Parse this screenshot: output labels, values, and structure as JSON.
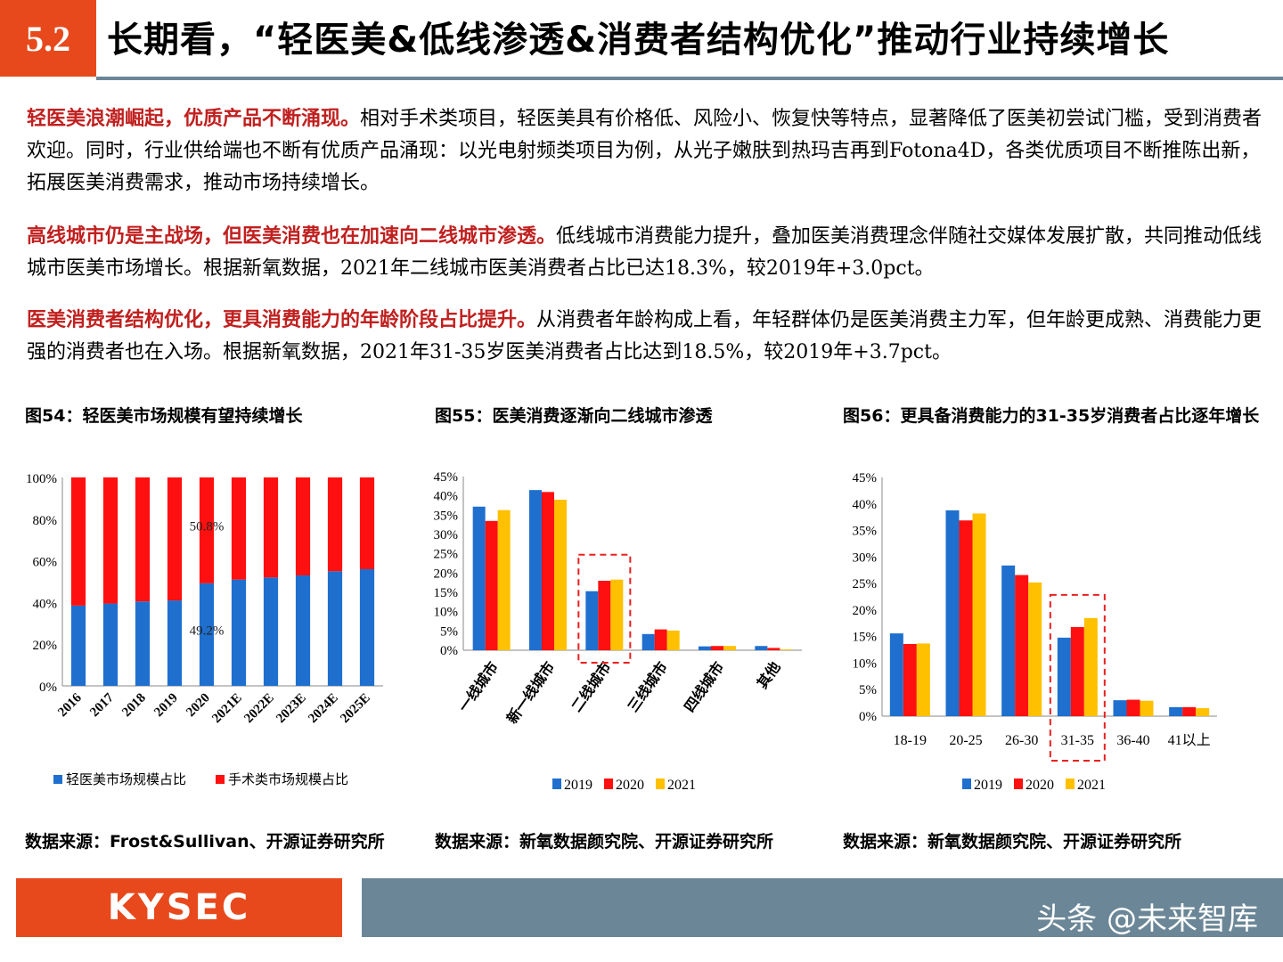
{
  "header": {
    "section_number": "5.2",
    "title": "长期看，“轻医美&低线渗透&消费者结构优化”推动行业持续增长"
  },
  "colors": {
    "accent": "#e8491c",
    "bar_slate": "#6b8797",
    "blue": "#1f6fce",
    "red": "#ff1010",
    "yellow": "#ffc000"
  },
  "paragraphs": [
    {
      "highlight": "轻医美浪潮崛起，优质产品不断涌现。",
      "text": "相对手术类项目，轻医美具有价格低、风险小、恢复快等特点，显著降低了医美初尝试门槛，受到消费者欢迎。同时，行业供给端也不断有优质产品涌现：以光电射频类项目为例，从光子嫩肤到热玛吉再到Fotona4D，各类优质项目不断推陈出新，拓展医美消费需求，推动市场持续增长。"
    },
    {
      "highlight": "高线城市仍是主战场，但医美消费也在加速向二线城市渗透。",
      "text": "低线城市消费能力提升，叠加医美消费理念伴随社交媒体发展扩散，共同推动低线城市医美市场增长。根据新氧数据，2021年二线城市医美消费者占比已达18.3%，较2019年+3.0pct。"
    },
    {
      "highlight": "医美消费者结构优化，更具消费能力的年龄阶段占比提升。",
      "text": "从消费者年龄构成上看，年轻群体仍是医美消费主力军，但年龄更成熟、消费能力更强的消费者也在入场。根据新氧数据，2021年31-35岁医美消费者占比达到18.5%，较2019年+3.7pct。"
    }
  ],
  "charts": [
    {
      "title": "图54：轻医美市场规模有望持续增长",
      "source": "数据来源：Frost&Sullivan、开源证券研究所"
    },
    {
      "title": "图55：医美消费逐渐向二线城市渗透",
      "source": "数据来源：新氧数据颜究院、开源证券研究所"
    },
    {
      "title": "图56：更具备消费能力的31-35岁消费者占比逐年增长",
      "source": "数据来源：新氧数据颜究院、开源证券研究所"
    }
  ],
  "chart_data": [
    {
      "type": "bar",
      "stacked": true,
      "categories": [
        "2016",
        "2017",
        "2018",
        "2019",
        "2020",
        "2021E",
        "2022E",
        "2023E",
        "2024E",
        "2025E"
      ],
      "series": [
        {
          "name": "轻医美市场规模占比",
          "values": [
            38.5,
            39.5,
            40.5,
            41.0,
            49.2,
            51.0,
            52.0,
            53.0,
            55.0,
            56.0
          ],
          "color": "#1f6fce"
        },
        {
          "name": "手术类市场规模占比",
          "values": [
            61.5,
            60.5,
            59.5,
            59.0,
            50.8,
            49.0,
            48.0,
            47.0,
            45.0,
            44.0
          ],
          "color": "#ff1010"
        }
      ],
      "ylim": [
        0,
        100
      ],
      "yticks": [
        "0%",
        "20%",
        "40%",
        "60%",
        "80%",
        "100%"
      ],
      "annotations": [
        "50.8%",
        "49.2%"
      ],
      "legend": "bottom"
    },
    {
      "type": "bar",
      "categories": [
        "一线城市",
        "新一线城市",
        "二线城市",
        "三线城市",
        "四线城市",
        "其他"
      ],
      "series": [
        {
          "name": "2019",
          "values": [
            37.2,
            41.5,
            15.3,
            4.2,
            1.0,
            1.1
          ],
          "color": "#1f6fce"
        },
        {
          "name": "2020",
          "values": [
            33.5,
            41.0,
            18.0,
            5.4,
            1.1,
            0.6
          ],
          "color": "#ff1010"
        },
        {
          "name": "2021",
          "values": [
            36.3,
            39.0,
            18.3,
            5.1,
            1.1,
            0.2
          ],
          "color": "#ffc000"
        }
      ],
      "ylim": [
        0,
        45
      ],
      "yticks": [
        "0%",
        "5%",
        "10%",
        "15%",
        "20%",
        "25%",
        "30%",
        "35%",
        "40%",
        "45%"
      ],
      "highlight_category": "二线城市",
      "legend": "bottom"
    },
    {
      "type": "bar",
      "categories": [
        "18-19",
        "20-25",
        "26-30",
        "31-35",
        "36-40",
        "41以上"
      ],
      "series": [
        {
          "name": "2019",
          "values": [
            15.6,
            38.8,
            28.4,
            14.8,
            3.0,
            1.7
          ],
          "color": "#1f6fce"
        },
        {
          "name": "2020",
          "values": [
            13.6,
            36.9,
            26.6,
            16.8,
            3.1,
            1.7
          ],
          "color": "#ff1010"
        },
        {
          "name": "2021",
          "values": [
            13.7,
            38.2,
            25.2,
            18.5,
            2.9,
            1.5
          ],
          "color": "#ffc000"
        }
      ],
      "ylim": [
        0,
        45
      ],
      "yticks": [
        "0%",
        "5%",
        "10%",
        "15%",
        "20%",
        "25%",
        "30%",
        "35%",
        "40%",
        "45%"
      ],
      "highlight_category": "31-35",
      "legend": "bottom"
    }
  ],
  "footer": {
    "logo": "KYSEC",
    "watermark": "头条 @未来智库"
  }
}
